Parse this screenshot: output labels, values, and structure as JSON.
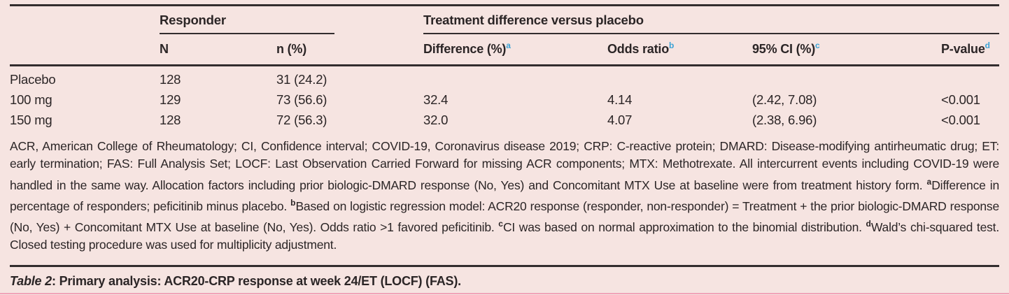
{
  "colors": {
    "background": "#f6e4e1",
    "text": "#2b2526",
    "rule": "#332d2e",
    "superscript_accent": "#3ca3d6",
    "bottom_border": "#f0a3b8"
  },
  "table": {
    "group_headers": [
      {
        "label": "Responder"
      },
      {
        "label": "Treatment difference versus placebo"
      }
    ],
    "columns": [
      {
        "label": ""
      },
      {
        "label": "N"
      },
      {
        "label": "n (%)"
      },
      {
        "label": "Difference (%)",
        "sup": "a"
      },
      {
        "label": "Odds ratio",
        "sup": "b"
      },
      {
        "label": "95% CI (%)",
        "sup": "c"
      },
      {
        "label": "P-value",
        "sup": "d"
      }
    ],
    "rows": [
      {
        "cells": [
          "Placebo",
          "128",
          "31 (24.2)",
          "",
          "",
          "",
          ""
        ]
      },
      {
        "cells": [
          "100 mg",
          "129",
          "73 (56.6)",
          "32.4",
          "4.14",
          "(2.42, 7.08)",
          "<0.001"
        ]
      },
      {
        "cells": [
          "150 mg",
          "128",
          "72 (56.3)",
          "32.0",
          "4.07",
          "(2.38, 6.96)",
          "<0.001"
        ]
      }
    ]
  },
  "footnote": {
    "segments": [
      {
        "text": "ACR, American College of Rheumatology; CI, Confidence interval; COVID-19, Coronavirus disease 2019; CRP: C-reactive protein; DMARD: Disease-modifying antirheumatic drug; ET: early termination; FAS: Full Analysis Set; LOCF: Last Observation Carried Forward for missing ACR components; MTX: Methotrexate. All intercurrent events including COVID-19 were handled in the same way. Allocation factors including prior biologic-DMARD response (No, Yes) and Concomitant MTX Use at baseline were from treatment history form. "
      },
      {
        "sup": "a"
      },
      {
        "text": "Difference in percentage of responders; peficitinib minus placebo. "
      },
      {
        "sup": "b"
      },
      {
        "text": "Based on logistic regression model: ACR20 response (responder, non-responder) = Treatment + the prior biologic-DMARD response (No, Yes) + Concomitant MTX Use at baseline (No, Yes). Odds ratio >1 favored peficitinib. "
      },
      {
        "sup": "c"
      },
      {
        "text": "CI was based on normal approximation to the binomial distribution. "
      },
      {
        "sup": "d"
      },
      {
        "text": "Wald’s chi-squared test. Closed testing procedure was used for multiplicity adjustment."
      }
    ]
  },
  "caption": {
    "label": "Table 2",
    "text": ": Primary analysis: ACR20-CRP response at week 24/ET (LOCF) (FAS)."
  }
}
